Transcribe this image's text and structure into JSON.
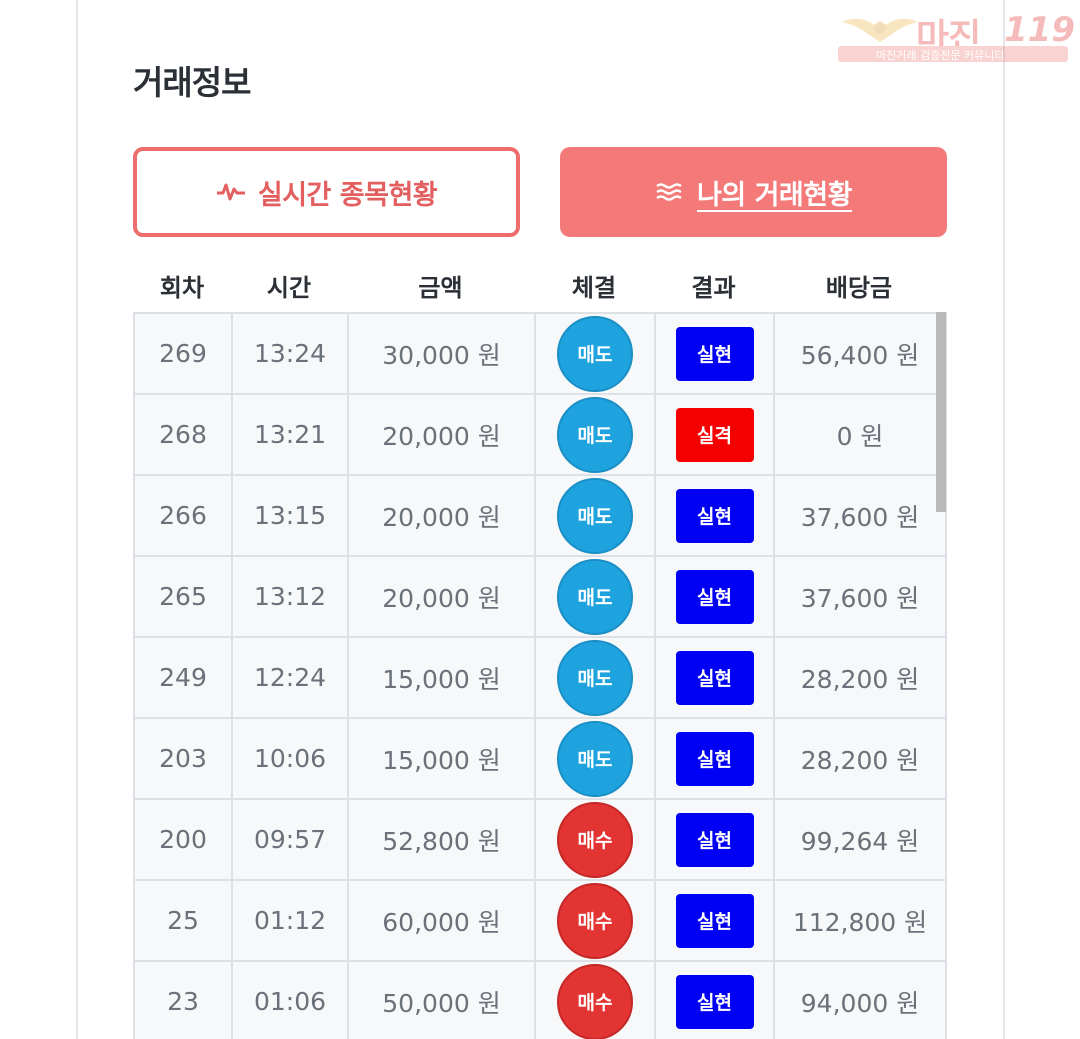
{
  "title": "거래정보",
  "watermark": {
    "brand": "마진",
    "number": "119",
    "tagline": "마진거래 검증전문 커뮤니티"
  },
  "buttons": {
    "live": {
      "label": "실시간 종목현황",
      "icon": "pulse-icon"
    },
    "mine": {
      "label": "나의 거래현황",
      "icon": "waves-icon"
    }
  },
  "columns": [
    "회차",
    "시간",
    "금액",
    "체결",
    "결과",
    "배당금"
  ],
  "colors": {
    "sell": "#1fa3de",
    "buy": "#e33434",
    "win": "#0000f5",
    "lose": "#f50000",
    "accent": "#f47a7a"
  },
  "rows": [
    {
      "round": "269",
      "time": "13:24",
      "amount": "30,000 원",
      "side": "매도",
      "side_type": "sell",
      "result": "실현",
      "result_type": "win",
      "payout": "56,400 원"
    },
    {
      "round": "268",
      "time": "13:21",
      "amount": "20,000 원",
      "side": "매도",
      "side_type": "sell",
      "result": "실격",
      "result_type": "lose",
      "payout": "0 원"
    },
    {
      "round": "266",
      "time": "13:15",
      "amount": "20,000 원",
      "side": "매도",
      "side_type": "sell",
      "result": "실현",
      "result_type": "win",
      "payout": "37,600 원"
    },
    {
      "round": "265",
      "time": "13:12",
      "amount": "20,000 원",
      "side": "매도",
      "side_type": "sell",
      "result": "실현",
      "result_type": "win",
      "payout": "37,600 원"
    },
    {
      "round": "249",
      "time": "12:24",
      "amount": "15,000 원",
      "side": "매도",
      "side_type": "sell",
      "result": "실현",
      "result_type": "win",
      "payout": "28,200 원"
    },
    {
      "round": "203",
      "time": "10:06",
      "amount": "15,000 원",
      "side": "매도",
      "side_type": "sell",
      "result": "실현",
      "result_type": "win",
      "payout": "28,200 원"
    },
    {
      "round": "200",
      "time": "09:57",
      "amount": "52,800 원",
      "side": "매수",
      "side_type": "buy",
      "result": "실현",
      "result_type": "win",
      "payout": "99,264 원"
    },
    {
      "round": "25",
      "time": "01:12",
      "amount": "60,000 원",
      "side": "매수",
      "side_type": "buy",
      "result": "실현",
      "result_type": "win",
      "payout": "112,800 원"
    },
    {
      "round": "23",
      "time": "01:06",
      "amount": "50,000 원",
      "side": "매수",
      "side_type": "buy",
      "result": "실현",
      "result_type": "win",
      "payout": "94,000 원"
    }
  ]
}
